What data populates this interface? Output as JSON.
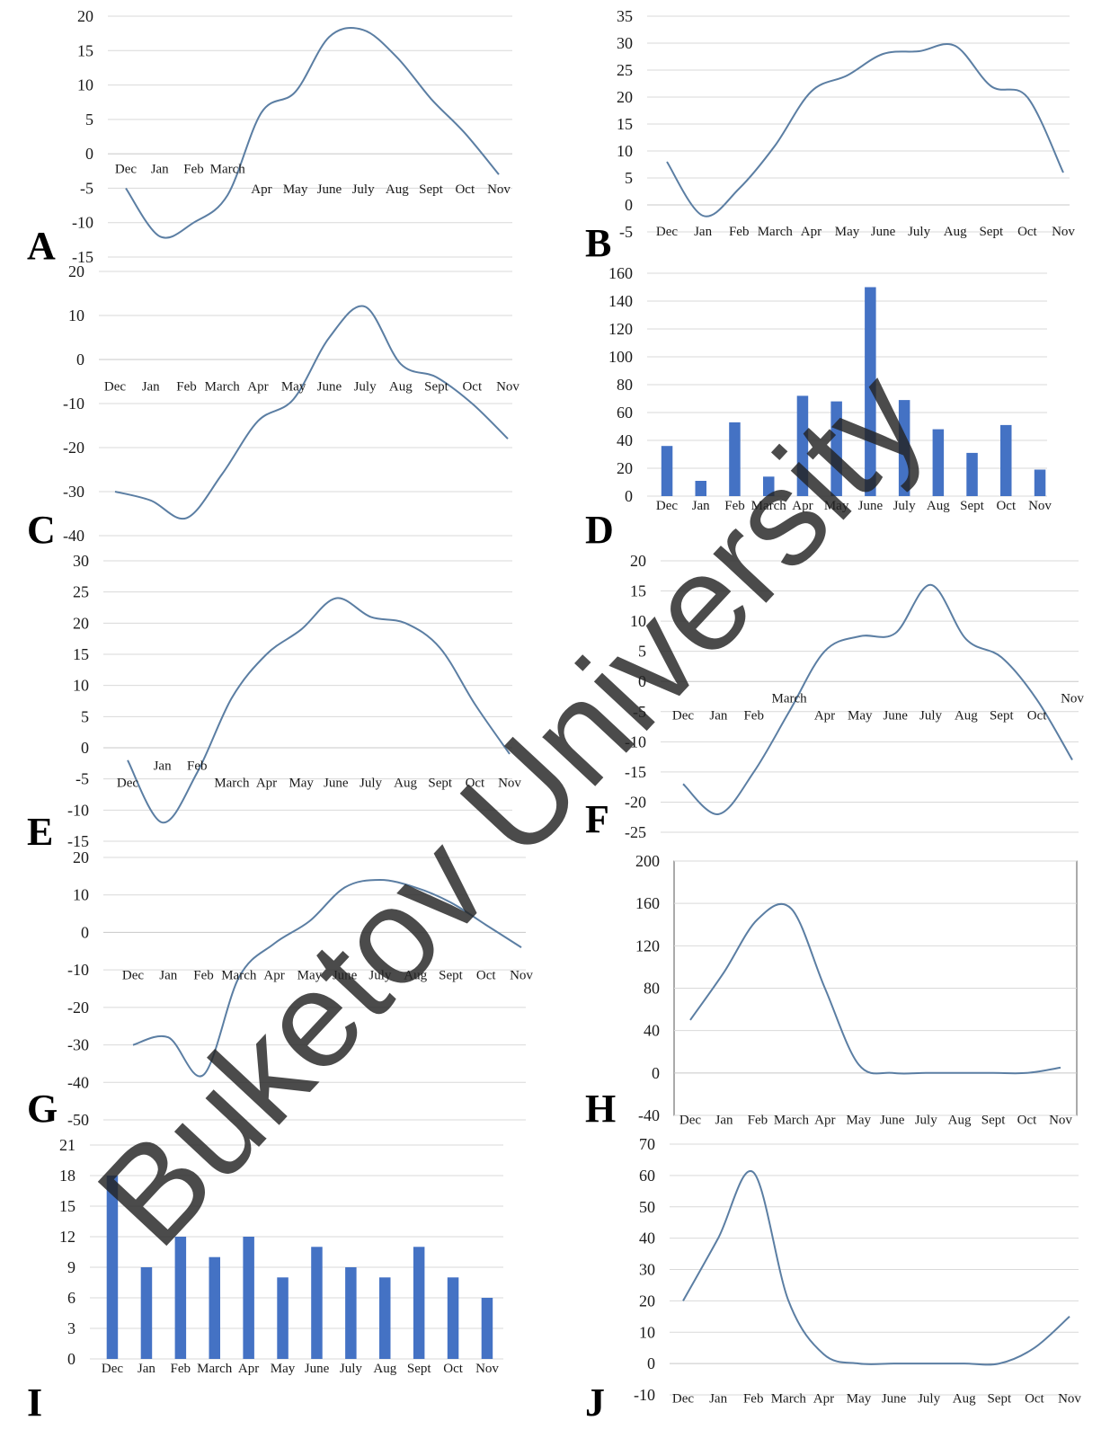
{
  "months": [
    "Dec",
    "Jan",
    "Feb",
    "March",
    "Apr",
    "May",
    "June",
    "July",
    "Aug",
    "Sept",
    "Oct",
    "Nov"
  ],
  "colors": {
    "line": "#5b7ea3",
    "bar": "#4472c4",
    "grid": "#d9d9d9",
    "text": "#1a1a1a",
    "watermark": "rgba(35,35,35,0.82)"
  },
  "watermark_text": "Buketov University",
  "chart_data": [
    {
      "id": "A",
      "letter": "A",
      "type": "line",
      "ylim": [
        -15,
        20
      ],
      "yticks": [
        -15,
        -10,
        -5,
        0,
        5,
        10,
        15,
        20
      ],
      "labels_y": {
        "Dec": -2.8,
        "Jan": -2.8,
        "Feb": -2.8,
        "March": -2.8,
        "Apr": -5.7,
        "May": -5.7,
        "June": -5.7,
        "July": -5.7,
        "Aug": -5.7,
        "Sept": -5.7,
        "Oct": -5.7,
        "Nov": -5.7
      },
      "values": [
        -5,
        -12,
        -10,
        -6,
        6,
        9,
        17,
        18,
        14,
        8,
        3,
        -3
      ]
    },
    {
      "id": "B",
      "letter": "B",
      "type": "line",
      "ylim": [
        -5,
        35
      ],
      "yticks": [
        -5,
        0,
        5,
        10,
        15,
        20,
        25,
        30,
        35
      ],
      "label_y": -5.7,
      "values": [
        8,
        -2,
        3,
        11,
        21,
        24,
        28,
        28.5,
        29.5,
        22,
        20,
        6
      ]
    },
    {
      "id": "C",
      "letter": "C",
      "type": "line",
      "ylim": [
        -40,
        20
      ],
      "yticks": [
        -40,
        -30,
        -20,
        -10,
        0,
        10,
        20
      ],
      "label_y": -7,
      "values": [
        -30,
        -32,
        -36,
        -26,
        -14,
        -9,
        5,
        12,
        -1,
        -4,
        -10,
        -18
      ]
    },
    {
      "id": "D",
      "letter": "D",
      "type": "bar",
      "ylim": [
        0,
        160
      ],
      "yticks": [
        0,
        20,
        40,
        60,
        80,
        100,
        120,
        140,
        160
      ],
      "values": [
        36,
        11,
        53,
        14,
        72,
        68,
        150,
        69,
        48,
        31,
        51,
        19
      ]
    },
    {
      "id": "E",
      "letter": "E",
      "type": "line",
      "ylim": [
        -15,
        30
      ],
      "yticks": [
        -15,
        -10,
        -5,
        0,
        5,
        10,
        15,
        20,
        25,
        30
      ],
      "labels_y": {
        "Dec": -6.3,
        "Jan": -3.5,
        "Feb": -3.5,
        "March": -6.3,
        "Apr": -6.3,
        "May": -6.3,
        "June": -6.3,
        "July": -6.3,
        "Aug": -6.3,
        "Sept": -6.3,
        "Oct": -6.3,
        "Nov": -6.3
      },
      "values": [
        -2,
        -12,
        -4,
        8,
        15,
        19,
        24,
        21,
        20,
        16,
        7,
        -1
      ]
    },
    {
      "id": "F",
      "letter": "F",
      "type": "line",
      "ylim": [
        -25,
        20
      ],
      "yticks": [
        -25,
        -20,
        -15,
        -10,
        -5,
        0,
        5,
        10,
        15,
        20
      ],
      "labels_y": {
        "Dec": -6.3,
        "Jan": -6.3,
        "Feb": -6.3,
        "March": -3.5,
        "Apr": -6.3,
        "May": -6.3,
        "June": -6.3,
        "July": -6.3,
        "Aug": -6.3,
        "Sept": -6.3,
        "Oct": -6.3,
        "Nov": -3.5
      },
      "values": [
        -17,
        -22,
        -15,
        -5,
        5,
        7.5,
        8,
        16,
        7,
        4,
        -3,
        -13
      ]
    },
    {
      "id": "G",
      "letter": "G",
      "type": "line",
      "ylim": [
        -50,
        20
      ],
      "yticks": [
        -50,
        -40,
        -30,
        -20,
        -10,
        0,
        10,
        20
      ],
      "label_y": -12.5,
      "values": [
        -30,
        -28,
        -38,
        -12,
        -3,
        3,
        12,
        14,
        12,
        8,
        2,
        -4
      ]
    },
    {
      "id": "H",
      "letter": "H",
      "type": "line",
      "framed": true,
      "ylim": [
        -40,
        200
      ],
      "yticks": [
        -40,
        0,
        40,
        80,
        120,
        160,
        200
      ],
      "label_y": -48,
      "values": [
        50,
        95,
        145,
        155,
        80,
        8,
        0,
        0,
        0,
        0,
        0,
        5
      ]
    },
    {
      "id": "I",
      "letter": "I",
      "type": "bar",
      "ylim": [
        0,
        21
      ],
      "yticks": [
        0,
        3,
        6,
        9,
        12,
        15,
        18,
        21
      ],
      "values": [
        18,
        9,
        12,
        10,
        12,
        8,
        11,
        9,
        8,
        11,
        8,
        6
      ]
    },
    {
      "id": "J",
      "letter": "J",
      "type": "line",
      "ylim": [
        -10,
        70
      ],
      "yticks": [
        -10,
        0,
        10,
        20,
        30,
        40,
        50,
        60,
        70
      ],
      "label_y": -12.5,
      "values": [
        20,
        40,
        61,
        20,
        3,
        0,
        0,
        0,
        0,
        0,
        5,
        15
      ]
    }
  ]
}
